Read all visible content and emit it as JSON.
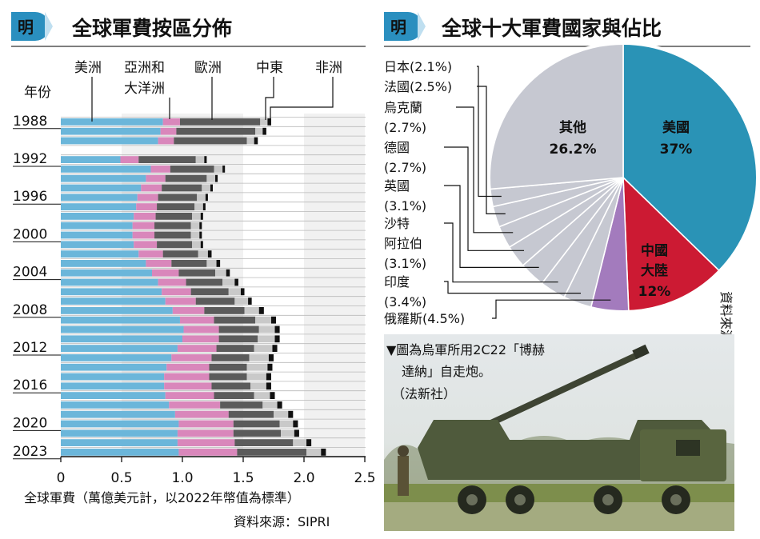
{
  "badge": "明",
  "chart_data": [
    {
      "type": "bar",
      "title": "全球軍費按區分佈",
      "orientation": "horizontal",
      "stacked": true,
      "ylabel": "年份",
      "xlabel": "全球軍費（萬億美元計，以2022年幣值為標準）",
      "source": "資料來源：SIPRI",
      "xlim": [
        0,
        2.5
      ],
      "xticks": [
        "0",
        "0.5",
        "1.0",
        "1.5",
        "2.0",
        "2.5"
      ],
      "year_labels": [
        "1988",
        "1992",
        "1996",
        "2000",
        "2004",
        "2008",
        "2012",
        "2016",
        "2020",
        "2023"
      ],
      "series_names": [
        "美洲",
        "亞洲和大洋洲",
        "歐洲",
        "中東",
        "非洲"
      ],
      "series_colors": [
        "#6bb6da",
        "#d987bb",
        "#5b5b5b",
        "#c9c9c9",
        "#111111"
      ],
      "rows": [
        {
          "year": 1988,
          "values": [
            0.84,
            0.14,
            0.66,
            0.06,
            0.03
          ]
        },
        {
          "year": 1989,
          "values": [
            0.82,
            0.13,
            0.65,
            0.06,
            0.03
          ]
        },
        {
          "year": 1990,
          "values": [
            0.8,
            0.13,
            0.6,
            0.06,
            0.03
          ]
        },
        {
          "year": 1991,
          "values": [
            null,
            null,
            null,
            null,
            null
          ]
        },
        {
          "year": 1992,
          "values": [
            0.49,
            0.15,
            0.47,
            0.07,
            0.02
          ]
        },
        {
          "year": 1993,
          "values": [
            0.74,
            0.16,
            0.36,
            0.07,
            0.02
          ]
        },
        {
          "year": 1994,
          "values": [
            0.7,
            0.16,
            0.34,
            0.07,
            0.02
          ]
        },
        {
          "year": 1995,
          "values": [
            0.66,
            0.17,
            0.33,
            0.07,
            0.02
          ]
        },
        {
          "year": 1996,
          "values": [
            0.63,
            0.17,
            0.32,
            0.07,
            0.02
          ]
        },
        {
          "year": 1997,
          "values": [
            0.62,
            0.17,
            0.31,
            0.07,
            0.02
          ]
        },
        {
          "year": 1998,
          "values": [
            0.6,
            0.18,
            0.3,
            0.07,
            0.02
          ]
        },
        {
          "year": 1999,
          "values": [
            0.59,
            0.18,
            0.3,
            0.07,
            0.02
          ]
        },
        {
          "year": 2000,
          "values": [
            0.59,
            0.18,
            0.3,
            0.07,
            0.02
          ]
        },
        {
          "year": 2001,
          "values": [
            0.6,
            0.19,
            0.29,
            0.07,
            0.02
          ]
        },
        {
          "year": 2002,
          "values": [
            0.64,
            0.2,
            0.29,
            0.08,
            0.03
          ]
        },
        {
          "year": 2003,
          "values": [
            0.7,
            0.21,
            0.29,
            0.08,
            0.03
          ]
        },
        {
          "year": 2004,
          "values": [
            0.75,
            0.22,
            0.3,
            0.09,
            0.03
          ]
        },
        {
          "year": 2005,
          "values": [
            0.8,
            0.23,
            0.3,
            0.1,
            0.03
          ]
        },
        {
          "year": 2006,
          "values": [
            0.83,
            0.24,
            0.31,
            0.1,
            0.03
          ]
        },
        {
          "year": 2007,
          "values": [
            0.86,
            0.25,
            0.32,
            0.11,
            0.03
          ]
        },
        {
          "year": 2008,
          "values": [
            0.92,
            0.26,
            0.33,
            0.12,
            0.04
          ]
        },
        {
          "year": 2009,
          "values": [
            0.98,
            0.28,
            0.34,
            0.13,
            0.04
          ]
        },
        {
          "year": 2010,
          "values": [
            1.01,
            0.29,
            0.33,
            0.13,
            0.04
          ]
        },
        {
          "year": 2011,
          "values": [
            1.0,
            0.3,
            0.32,
            0.14,
            0.04
          ]
        },
        {
          "year": 2012,
          "values": [
            0.96,
            0.32,
            0.31,
            0.15,
            0.04
          ]
        },
        {
          "year": 2013,
          "values": [
            0.91,
            0.33,
            0.31,
            0.16,
            0.04
          ]
        },
        {
          "year": 2014,
          "values": [
            0.87,
            0.35,
            0.31,
            0.17,
            0.04
          ]
        },
        {
          "year": 2015,
          "values": [
            0.85,
            0.37,
            0.31,
            0.16,
            0.04
          ]
        },
        {
          "year": 2016,
          "values": [
            0.85,
            0.39,
            0.32,
            0.13,
            0.04
          ]
        },
        {
          "year": 2017,
          "values": [
            0.86,
            0.4,
            0.33,
            0.13,
            0.04
          ]
        },
        {
          "year": 2018,
          "values": [
            0.89,
            0.42,
            0.35,
            0.12,
            0.04
          ]
        },
        {
          "year": 2019,
          "values": [
            0.94,
            0.44,
            0.37,
            0.12,
            0.04
          ]
        },
        {
          "year": 2020,
          "values": [
            0.97,
            0.45,
            0.38,
            0.11,
            0.04
          ]
        },
        {
          "year": 2021,
          "values": [
            0.96,
            0.46,
            0.39,
            0.11,
            0.04
          ]
        },
        {
          "year": 2022,
          "values": [
            0.96,
            0.47,
            0.48,
            0.11,
            0.04
          ]
        },
        {
          "year": 2023,
          "values": [
            0.97,
            0.48,
            0.57,
            0.12,
            0.04
          ]
        }
      ]
    },
    {
      "type": "pie",
      "title": "全球十大軍費國家與佔比",
      "source": "資料來源：SIPRI",
      "slices": [
        {
          "label": "美國",
          "value": 37,
          "text": "37%",
          "color": "#2a93b6"
        },
        {
          "label": "中國大陸",
          "value": 12,
          "text": "12%",
          "color": "#cc1a33"
        },
        {
          "label": "俄羅斯",
          "value": 4.5,
          "text": "(4.5%)",
          "color": "#a37bbd"
        },
        {
          "label": "印度",
          "value": 3.4,
          "text": "(3.4%)",
          "color": "#c6c8d1"
        },
        {
          "label": "沙特阿拉伯",
          "value": 3.1,
          "text": "(3.1%)",
          "color": "#c6c8d1"
        },
        {
          "label": "英國",
          "value": 3.1,
          "text": "(3.1%)",
          "color": "#c6c8d1"
        },
        {
          "label": "德國",
          "value": 2.7,
          "text": "(2.7%)",
          "color": "#c6c8d1"
        },
        {
          "label": "烏克蘭",
          "value": 2.7,
          "text": "(2.7%)",
          "color": "#c6c8d1"
        },
        {
          "label": "法國",
          "value": 2.5,
          "text": "(2.5%)",
          "color": "#c6c8d1"
        },
        {
          "label": "日本",
          "value": 2.1,
          "text": "(2.1%)",
          "color": "#c6c8d1"
        },
        {
          "label": "其他",
          "value": 26.2,
          "text": "26.2%",
          "color": "#c6c8d1"
        }
      ]
    }
  ],
  "photo_caption": {
    "line1": "▼圖為烏軍所用2C22「博赫",
    "line2": "達納」自走炮。",
    "line3": "（法新社）"
  },
  "photo_icon": "self-propelled-howitzer-photo"
}
